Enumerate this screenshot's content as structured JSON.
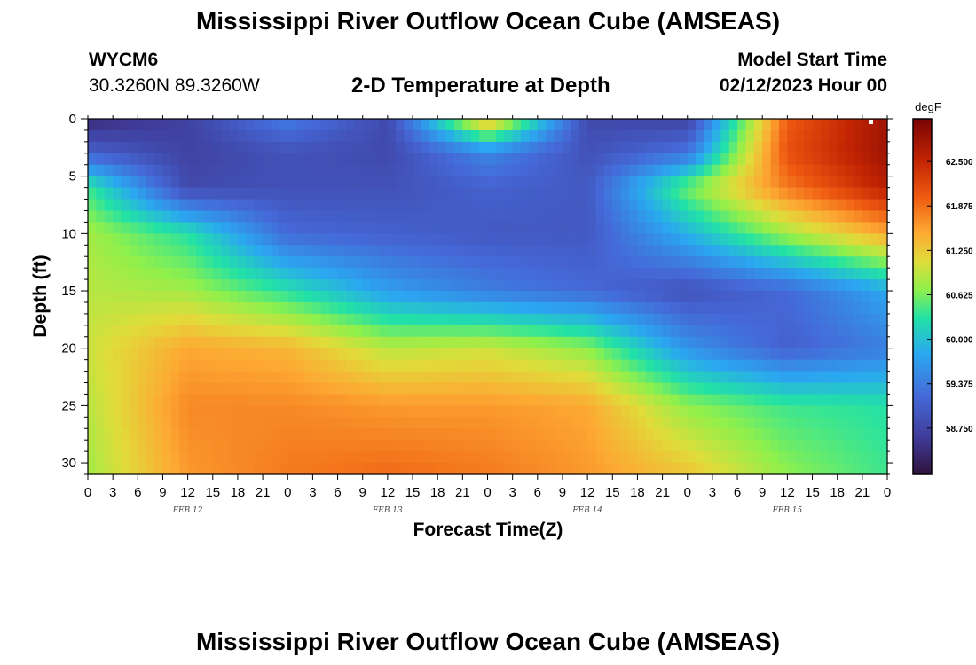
{
  "title": "Mississippi River Outflow Ocean Cube (AMSEAS)",
  "footer_title": "Mississippi River Outflow Ocean Cube (AMSEAS)",
  "station": {
    "id": "WYCM6",
    "coords": "30.3260N  89.3260W"
  },
  "subtitle": "2-D Temperature at Depth",
  "model_start": {
    "label": "Model Start Time",
    "value": "02/12/2023 Hour 00"
  },
  "chart_data": {
    "type": "heatmap",
    "title": "2-D Temperature at Depth",
    "xlabel": "Forecast Time(Z)",
    "ylabel": "Depth (ft)",
    "x_range_hours": [
      0,
      96
    ],
    "x_tick_labels": [
      "0",
      "3",
      "6",
      "9",
      "12",
      "15",
      "18",
      "21",
      "0",
      "3",
      "6",
      "9",
      "12",
      "15",
      "18",
      "21",
      "0",
      "3",
      "6",
      "9",
      "12",
      "15",
      "18",
      "21",
      "0",
      "3",
      "6",
      "9",
      "12",
      "15",
      "18",
      "21",
      "0"
    ],
    "day_labels": [
      "FEB 12",
      "FEB 13",
      "FEB 14",
      "FEB 15"
    ],
    "ylim": [
      0,
      31
    ],
    "y_ticks": [
      0,
      5,
      10,
      15,
      20,
      25,
      30
    ],
    "colorbar": {
      "unit": "degF",
      "range": [
        58.1,
        63.1
      ],
      "tick_values": [
        58.75,
        59.375,
        60.0,
        60.625,
        61.25,
        61.875,
        62.5
      ],
      "tick_labels": [
        "58.750",
        "59.375",
        "60.000",
        "60.625",
        "61.250",
        "61.875",
        "62.500"
      ]
    },
    "grid": {
      "x_hours": [
        0,
        12,
        24,
        36,
        48,
        60,
        72,
        84,
        96
      ],
      "depths_ft": [
        0,
        3,
        6,
        10,
        15,
        20,
        25,
        31
      ],
      "comment": "rows = depth levels, columns = forecast hours, values in degF (approximate)",
      "values": [
        [
          58.4,
          58.7,
          59.4,
          58.8,
          61.5,
          58.8,
          58.7,
          62.0,
          62.8
        ],
        [
          59.1,
          58.7,
          58.9,
          58.8,
          59.5,
          58.9,
          59.3,
          62.1,
          62.8
        ],
        [
          60.4,
          58.8,
          58.9,
          58.9,
          59.1,
          59.0,
          60.6,
          61.8,
          62.6
        ],
        [
          60.8,
          60.3,
          59.2,
          59.1,
          59.0,
          59.0,
          59.9,
          60.8,
          61.5
        ],
        [
          60.9,
          60.8,
          60.3,
          59.7,
          59.4,
          59.2,
          58.9,
          59.2,
          59.8
        ],
        [
          61.0,
          61.5,
          61.4,
          60.9,
          61.0,
          60.7,
          59.6,
          59.1,
          59.4
        ],
        [
          60.9,
          61.7,
          61.7,
          61.6,
          61.6,
          61.5,
          60.7,
          60.4,
          60.3
        ],
        [
          60.8,
          61.6,
          61.8,
          61.9,
          61.8,
          61.6,
          61.3,
          60.7,
          60.4
        ]
      ]
    }
  }
}
